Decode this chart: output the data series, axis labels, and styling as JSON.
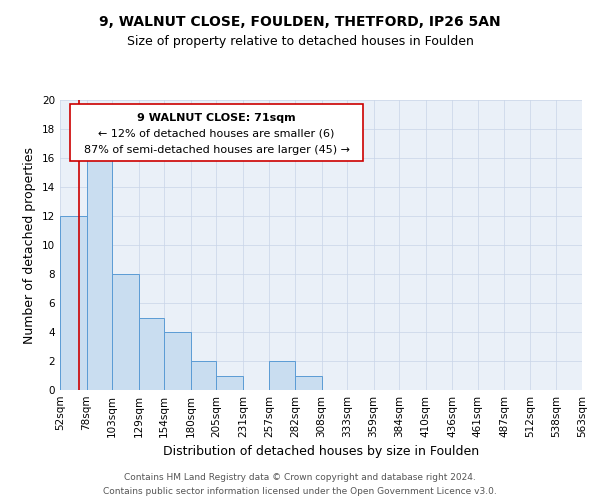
{
  "title": "9, WALNUT CLOSE, FOULDEN, THETFORD, IP26 5AN",
  "subtitle": "Size of property relative to detached houses in Foulden",
  "xlabel": "Distribution of detached houses by size in Foulden",
  "ylabel": "Number of detached properties",
  "bin_edges": [
    52,
    78,
    103,
    129,
    154,
    180,
    205,
    231,
    257,
    282,
    308,
    333,
    359,
    384,
    410,
    436,
    461,
    487,
    512,
    538,
    563
  ],
  "bin_counts": [
    12,
    16,
    8,
    5,
    4,
    2,
    1,
    0,
    2,
    1,
    0,
    0,
    0,
    0,
    0,
    0,
    0,
    0,
    0,
    0
  ],
  "bar_color": "#c9ddf0",
  "bar_edge_color": "#5b9bd5",
  "property_line_x": 71,
  "property_line_color": "#cc0000",
  "annotation_line1": "9 WALNUT CLOSE: 71sqm",
  "annotation_line2": "← 12% of detached houses are smaller (6)",
  "annotation_line3": "87% of semi-detached houses are larger (45) →",
  "ylim": [
    0,
    20
  ],
  "yticks": [
    0,
    2,
    4,
    6,
    8,
    10,
    12,
    14,
    16,
    18,
    20
  ],
  "grid_color": "#c8d4e8",
  "bg_color": "#eaf0f8",
  "footer_line1": "Contains HM Land Registry data © Crown copyright and database right 2024.",
  "footer_line2": "Contains public sector information licensed under the Open Government Licence v3.0.",
  "title_fontsize": 10,
  "subtitle_fontsize": 9,
  "axis_label_fontsize": 9,
  "tick_fontsize": 7.5,
  "annotation_fontsize": 8,
  "footer_fontsize": 6.5
}
